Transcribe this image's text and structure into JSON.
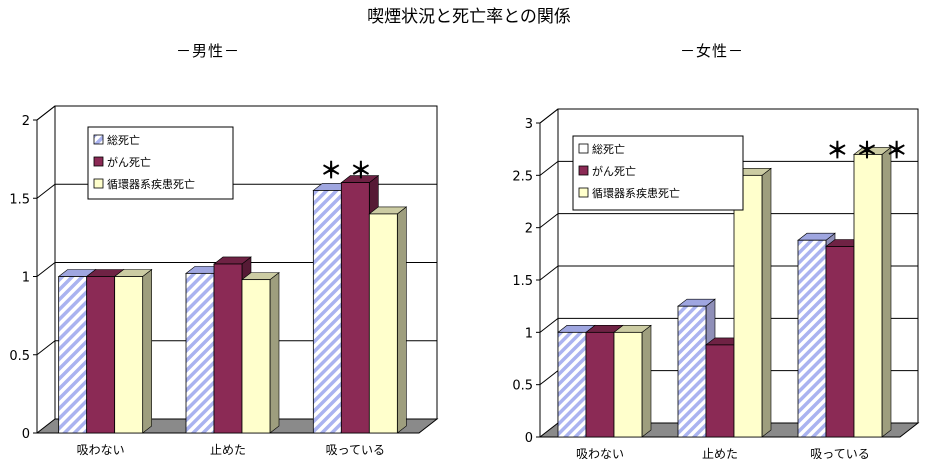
{
  "title": "喫煙状況と死亡率との関係",
  "colors": {
    "total": "#aab3f0",
    "cancer": "#8b2a55",
    "circulatory": "#ffffcc",
    "grid": "#000000"
  },
  "chart_data": [
    {
      "type": "bar",
      "subtitle": "－男性－",
      "categories": [
        "吸わない",
        "止めた",
        "吸っている"
      ],
      "series": [
        {
          "name": "総死亡",
          "values": [
            1.0,
            1.02,
            1.55
          ]
        },
        {
          "name": "がん死亡",
          "values": [
            1.0,
            1.08,
            1.6
          ]
        },
        {
          "name": "循環器系疾患死亡",
          "values": [
            1.0,
            0.98,
            1.4
          ]
        }
      ],
      "ylim": [
        0,
        2
      ],
      "yticks": [
        "0",
        "0.5",
        "1",
        "1.5",
        "2"
      ],
      "legend_position": "top-left",
      "annotation": "＊ ＊"
    },
    {
      "type": "bar",
      "subtitle": "－女性－",
      "categories": [
        "吸わない",
        "止めた",
        "吸っている"
      ],
      "series": [
        {
          "name": "総死亡",
          "values": [
            1.0,
            1.25,
            1.88
          ]
        },
        {
          "name": "がん死亡",
          "values": [
            1.0,
            0.88,
            1.82
          ]
        },
        {
          "name": "循環器系疾患死亡",
          "values": [
            1.0,
            2.5,
            2.7
          ]
        }
      ],
      "ylim": [
        0,
        3
      ],
      "yticks": [
        "0",
        "0.5",
        "1",
        "1.5",
        "2",
        "2.5",
        "3"
      ],
      "legend_position": "top-left",
      "annotation": "＊ ＊ ＊"
    }
  ]
}
